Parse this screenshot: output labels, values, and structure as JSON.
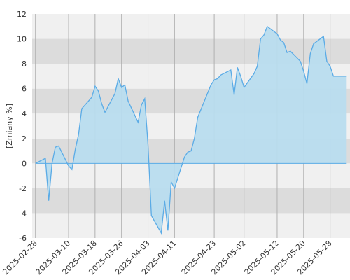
{
  "chart_data": {
    "type": "area",
    "title": "",
    "xlabel": "",
    "ylabel": "[Zmiany %]",
    "ylim": [
      -6,
      12
    ],
    "yticks": [
      -6,
      -4,
      -2,
      0,
      2,
      4,
      6,
      8,
      10,
      12
    ],
    "xtick_labels": [
      "2025-02-28",
      "2025-03-10",
      "2025-03-18",
      "2025-03-26",
      "2025-04-03",
      "2025-04-11",
      "2025-04-23",
      "2025-05-02",
      "2025-05-12",
      "2025-05-20",
      "2025-05-28"
    ],
    "grid": "horizontal bands, vertical lines at date ticks",
    "legend": "none",
    "colors": {
      "line": "#5aabe6",
      "fill": "#b8dcee",
      "band_light": "#f0f0f0",
      "band_dark": "#dcdcdc",
      "grid_line": "#b0b0b0",
      "zero_line": "#5aabe6"
    },
    "series": [
      {
        "x": [
          "2025-02-28",
          "2025-03-03",
          "2025-03-04",
          "2025-03-05",
          "2025-03-06",
          "2025-03-07",
          "2025-03-10",
          "2025-03-11",
          "2025-03-12",
          "2025-03-13",
          "2025-03-14",
          "2025-03-17",
          "2025-03-18",
          "2025-03-19",
          "2025-03-20",
          "2025-03-21",
          "2025-03-24",
          "2025-03-25",
          "2025-03-26",
          "2025-03-27",
          "2025-03-28",
          "2025-03-31",
          "2025-04-01",
          "2025-04-02",
          "2025-04-03",
          "2025-04-04",
          "2025-04-07",
          "2025-04-08",
          "2025-04-09",
          "2025-04-10",
          "2025-04-11",
          "2025-04-14",
          "2025-04-15",
          "2025-04-16",
          "2025-04-17",
          "2025-04-18",
          "2025-04-22",
          "2025-04-23",
          "2025-04-24",
          "2025-04-25",
          "2025-04-28",
          "2025-04-29",
          "2025-04-30",
          "2025-05-01",
          "2025-05-02",
          "2025-05-05",
          "2025-05-06",
          "2025-05-07",
          "2025-05-08",
          "2025-05-09",
          "2025-05-12",
          "2025-05-13",
          "2025-05-14",
          "2025-05-15",
          "2025-05-16",
          "2025-05-19",
          "2025-05-20",
          "2025-05-21",
          "2025-05-22",
          "2025-05-23",
          "2025-05-26",
          "2025-05-27",
          "2025-05-28",
          "2025-05-29",
          "2025-05-30",
          "2025-06-02"
        ],
        "values": [
          0.0,
          0.4,
          -3.0,
          0.0,
          1.3,
          1.4,
          -0.2,
          -0.5,
          1.1,
          2.3,
          4.4,
          5.3,
          6.2,
          5.8,
          4.8,
          4.1,
          5.6,
          6.8,
          6.1,
          6.3,
          5.0,
          3.3,
          4.7,
          5.2,
          1.5,
          -4.2,
          -5.6,
          -3.0,
          -5.4,
          -1.5,
          -2.0,
          0.5,
          0.9,
          1.0,
          2.0,
          3.7,
          6.3,
          6.7,
          6.8,
          7.1,
          7.5,
          5.5,
          7.7,
          7.0,
          6.1,
          7.2,
          7.8,
          10.0,
          10.3,
          11.0,
          10.4,
          9.9,
          9.7,
          8.9,
          9.0,
          8.2,
          7.4,
          6.4,
          8.8,
          9.6,
          10.2,
          8.2,
          7.8,
          7.0,
          7.0,
          7.0
        ]
      }
    ]
  }
}
